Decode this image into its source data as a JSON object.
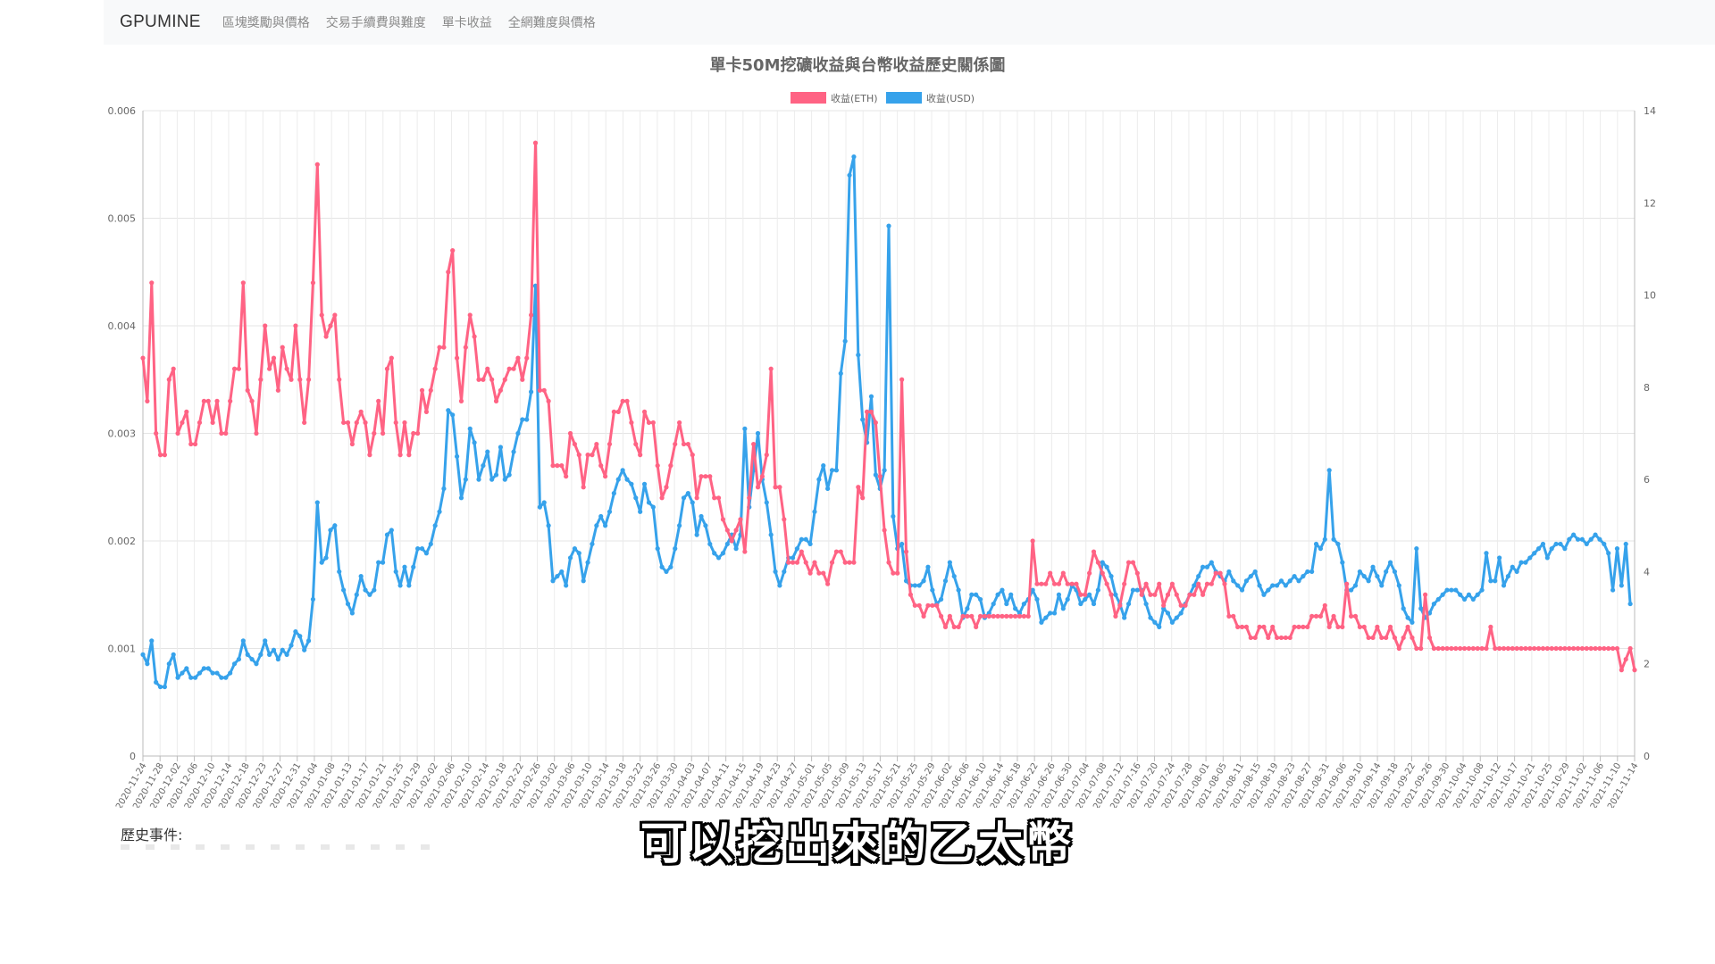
{
  "navbar": {
    "brand": "GPUMINE",
    "items": [
      "區塊獎勵與價格",
      "交易手續費與難度",
      "單卡收益",
      "全網難度與價格"
    ]
  },
  "chart_data": {
    "type": "line",
    "title": "單卡50M挖礦收益與台幣收益歷史關係圖",
    "legend_position": "top-center",
    "grid": true,
    "y_left": {
      "ylim": [
        0,
        0.006
      ],
      "ticks": [
        "0",
        "0.001",
        "0.002",
        "0.003",
        "0.004",
        "0.005",
        "0.006"
      ]
    },
    "y_right": {
      "ylim": [
        0,
        14
      ],
      "ticks": [
        "0",
        "2",
        "4",
        "6",
        "8",
        "10",
        "12",
        "14"
      ]
    },
    "x_tick_labels": [
      "2020-11-24",
      "2020-11-28",
      "2020-12-02",
      "2020-12-06",
      "2020-12-10",
      "2020-12-14",
      "2020-12-18",
      "2020-12-23",
      "2020-12-27",
      "2020-12-31",
      "2021-01-04",
      "2021-01-08",
      "2021-01-13",
      "2021-01-17",
      "2021-01-21",
      "2021-01-25",
      "2021-01-29",
      "2021-02-02",
      "2021-02-06",
      "2021-02-10",
      "2021-02-14",
      "2021-02-18",
      "2021-02-22",
      "2021-02-26",
      "2021-03-02",
      "2021-03-06",
      "2021-03-10",
      "2021-03-14",
      "2021-03-18",
      "2021-03-22",
      "2021-03-26",
      "2021-03-30",
      "2021-04-03",
      "2021-04-07",
      "2021-04-11",
      "2021-04-15",
      "2021-04-19",
      "2021-04-23",
      "2021-04-27",
      "2021-05-01",
      "2021-05-05",
      "2021-05-09",
      "2021-05-13",
      "2021-05-17",
      "2021-05-21",
      "2021-05-25",
      "2021-05-29",
      "2021-06-02",
      "2021-06-06",
      "2021-06-10",
      "2021-06-14",
      "2021-06-18",
      "2021-06-22",
      "2021-06-26",
      "2021-06-30",
      "2021-07-04",
      "2021-07-08",
      "2021-07-12",
      "2021-07-16",
      "2021-07-20",
      "2021-07-24",
      "2021-07-28",
      "2021-08-01",
      "2021-08-05",
      "2021-08-11",
      "2021-08-15",
      "2021-08-19",
      "2021-08-23",
      "2021-08-27",
      "2021-08-31",
      "2021-09-06",
      "2021-09-10",
      "2021-09-14",
      "2021-09-18",
      "2021-09-22",
      "2021-09-26",
      "2021-09-30",
      "2021-10-04",
      "2021-10-08",
      "2021-10-12",
      "2021-10-17",
      "2021-10-21",
      "2021-10-25",
      "2021-10-29",
      "2021-11-02",
      "2021-11-06",
      "2021-11-10",
      "2021-11-14"
    ],
    "series": [
      {
        "name": "收益(ETH)",
        "axis": "left",
        "color": "#ff6384",
        "values": [
          0.0037,
          0.0033,
          0.0044,
          0.003,
          0.0028,
          0.0028,
          0.0035,
          0.0036,
          0.003,
          0.0031,
          0.0032,
          0.0029,
          0.0029,
          0.0031,
          0.0033,
          0.0033,
          0.0031,
          0.0033,
          0.003,
          0.003,
          0.0033,
          0.0036,
          0.0036,
          0.0044,
          0.0034,
          0.0033,
          0.003,
          0.0035,
          0.004,
          0.0036,
          0.0037,
          0.0034,
          0.0038,
          0.0036,
          0.0035,
          0.004,
          0.0035,
          0.0031,
          0.0035,
          0.0044,
          0.0055,
          0.0041,
          0.0039,
          0.004,
          0.0041,
          0.0035,
          0.0031,
          0.0031,
          0.0029,
          0.0031,
          0.0032,
          0.0031,
          0.0028,
          0.003,
          0.0033,
          0.003,
          0.0036,
          0.0037,
          0.0031,
          0.0028,
          0.0031,
          0.0028,
          0.003,
          0.003,
          0.0034,
          0.0032,
          0.0034,
          0.0036,
          0.0038,
          0.0038,
          0.0045,
          0.0047,
          0.0037,
          0.0033,
          0.0038,
          0.0041,
          0.0039,
          0.0035,
          0.0035,
          0.0036,
          0.0035,
          0.0033,
          0.0034,
          0.0035,
          0.0036,
          0.0036,
          0.0037,
          0.0035,
          0.0037,
          0.0041,
          0.0057,
          0.0034,
          0.0034,
          0.0033,
          0.0027,
          0.0027,
          0.0027,
          0.0026,
          0.003,
          0.0029,
          0.0028,
          0.0025,
          0.0028,
          0.0028,
          0.0029,
          0.0027,
          0.0026,
          0.0029,
          0.0032,
          0.0032,
          0.0033,
          0.0033,
          0.0031,
          0.0029,
          0.0028,
          0.0032,
          0.0031,
          0.0031,
          0.0027,
          0.0024,
          0.0025,
          0.0027,
          0.0029,
          0.0031,
          0.0029,
          0.0029,
          0.0028,
          0.0024,
          0.0026,
          0.0026,
          0.0026,
          0.0024,
          0.0024,
          0.0022,
          0.0021,
          0.002,
          0.0021,
          0.0022,
          0.0019,
          0.0024,
          0.0029,
          0.0025,
          0.0026,
          0.0028,
          0.0036,
          0.0025,
          0.0025,
          0.0022,
          0.0018,
          0.0018,
          0.0018,
          0.0019,
          0.0018,
          0.0017,
          0.0018,
          0.0017,
          0.0017,
          0.0016,
          0.0018,
          0.0019,
          0.0019,
          0.0018,
          0.0018,
          0.0018,
          0.0025,
          0.0024,
          0.0032,
          0.0032,
          0.0031,
          0.0026,
          0.0021,
          0.0018,
          0.0017,
          0.0017,
          0.0035,
          0.0019,
          0.0015,
          0.0014,
          0.0014,
          0.0013,
          0.0014,
          0.0014,
          0.0014,
          0.0013,
          0.0012,
          0.0013,
          0.0012,
          0.0012,
          0.0013,
          0.0013,
          0.0013,
          0.0012,
          0.0013,
          0.0013,
          0.0013,
          0.0013,
          0.0013,
          0.0013,
          0.0013,
          0.0013,
          0.0013,
          0.0013,
          0.0013,
          0.0013,
          0.002,
          0.0016,
          0.0016,
          0.0016,
          0.0017,
          0.0016,
          0.0016,
          0.0017,
          0.0016,
          0.0016,
          0.0016,
          0.0015,
          0.0015,
          0.0017,
          0.0019,
          0.0018,
          0.0017,
          0.0016,
          0.0015,
          0.0013,
          0.0014,
          0.0016,
          0.0018,
          0.0018,
          0.0017,
          0.0015,
          0.0016,
          0.0015,
          0.0015,
          0.0016,
          0.0014,
          0.0015,
          0.0016,
          0.0015,
          0.0014,
          0.0014,
          0.0015,
          0.0015,
          0.0016,
          0.0015,
          0.0016,
          0.0016,
          0.0017,
          0.0017,
          0.0016,
          0.0013,
          0.0013,
          0.0012,
          0.0012,
          0.0012,
          0.0011,
          0.0011,
          0.0012,
          0.0012,
          0.0011,
          0.0012,
          0.0011,
          0.0011,
          0.0011,
          0.0011,
          0.0012,
          0.0012,
          0.0012,
          0.0012,
          0.0013,
          0.0013,
          0.0013,
          0.0014,
          0.0012,
          0.0013,
          0.0012,
          0.0012,
          0.0016,
          0.0013,
          0.0013,
          0.0012,
          0.0012,
          0.0011,
          0.0011,
          0.0012,
          0.0011,
          0.0011,
          0.0012,
          0.0011,
          0.001,
          0.0011,
          0.0012,
          0.0011,
          0.001,
          0.001,
          0.0015,
          0.0011,
          0.001,
          0.001,
          0.001,
          0.001,
          0.001,
          0.001,
          0.001,
          0.001,
          0.001,
          0.001,
          0.001,
          0.001,
          0.001,
          0.0012,
          0.001,
          0.001,
          0.001,
          0.001,
          0.001,
          0.001,
          0.001,
          0.001,
          0.001,
          0.001,
          0.001,
          0.001,
          0.001,
          0.001,
          0.001,
          0.001,
          0.001,
          0.001,
          0.001,
          0.001,
          0.001,
          0.001,
          0.001,
          0.001,
          0.001,
          0.001,
          0.001,
          0.001,
          0.001,
          0.0008,
          0.0009,
          0.001,
          0.0008
        ]
      },
      {
        "name": "收益(USD)",
        "axis": "right",
        "color": "#36a2eb",
        "values": [
          2.2,
          2.0,
          2.5,
          1.6,
          1.5,
          1.5,
          2.0,
          2.2,
          1.7,
          1.8,
          1.9,
          1.7,
          1.7,
          1.8,
          1.9,
          1.9,
          1.8,
          1.8,
          1.7,
          1.7,
          1.8,
          2.0,
          2.1,
          2.5,
          2.2,
          2.1,
          2.0,
          2.2,
          2.5,
          2.2,
          2.3,
          2.1,
          2.3,
          2.2,
          2.4,
          2.7,
          2.6,
          2.3,
          2.5,
          3.4,
          5.5,
          4.2,
          4.3,
          4.9,
          5.0,
          4.0,
          3.6,
          3.3,
          3.1,
          3.5,
          3.9,
          3.6,
          3.5,
          3.6,
          4.2,
          4.2,
          4.8,
          4.9,
          4.0,
          3.7,
          4.1,
          3.7,
          4.1,
          4.5,
          4.5,
          4.4,
          4.6,
          5.0,
          5.3,
          5.8,
          7.5,
          7.4,
          6.5,
          5.6,
          6.0,
          7.1,
          6.8,
          6.0,
          6.3,
          6.6,
          6.0,
          6.1,
          6.7,
          6.0,
          6.1,
          6.6,
          7.0,
          7.3,
          7.3,
          7.9,
          10.2,
          5.4,
          5.5,
          5.0,
          3.8,
          3.9,
          4.0,
          3.7,
          4.3,
          4.5,
          4.4,
          3.8,
          4.2,
          4.6,
          5.0,
          5.2,
          5.0,
          5.3,
          5.7,
          6.0,
          6.2,
          6.0,
          5.9,
          5.6,
          5.3,
          5.9,
          5.5,
          5.4,
          4.5,
          4.1,
          4.0,
          4.1,
          4.5,
          5.0,
          5.6,
          5.7,
          5.5,
          4.8,
          5.2,
          5.0,
          4.6,
          4.4,
          4.3,
          4.4,
          4.6,
          4.8,
          4.5,
          4.8,
          7.1,
          5.4,
          6.2,
          7.0,
          6.0,
          5.5,
          4.8,
          4.0,
          3.7,
          4.0,
          4.3,
          4.3,
          4.5,
          4.7,
          4.7,
          4.6,
          5.3,
          6.0,
          6.3,
          5.8,
          6.2,
          6.2,
          8.3,
          9.0,
          12.6,
          13.0,
          8.7,
          7.3,
          6.8,
          7.8,
          6.1,
          5.8,
          6.2,
          11.5,
          5.2,
          4.5,
          4.6,
          3.8,
          3.7,
          3.7,
          3.7,
          3.8,
          4.1,
          3.6,
          3.3,
          3.4,
          3.8,
          4.2,
          3.9,
          3.6,
          3.0,
          3.2,
          3.5,
          3.5,
          3.4,
          3.0,
          3.1,
          3.3,
          3.5,
          3.6,
          3.3,
          3.5,
          3.2,
          3.1,
          3.3,
          3.4,
          3.6,
          3.4,
          2.9,
          3.0,
          3.1,
          3.1,
          3.5,
          3.2,
          3.4,
          3.7,
          3.6,
          3.3,
          3.4,
          3.5,
          3.3,
          3.6,
          4.2,
          4.1,
          3.9,
          3.5,
          3.3,
          3.0,
          3.3,
          3.6,
          3.6,
          3.6,
          3.3,
          3.0,
          2.9,
          2.8,
          3.2,
          3.1,
          2.9,
          3.0,
          3.1,
          3.3,
          3.5,
          3.7,
          3.9,
          4.1,
          4.1,
          4.2,
          4.0,
          3.9,
          3.8,
          4.0,
          3.8,
          3.7,
          3.6,
          3.8,
          3.9,
          4.0,
          3.7,
          3.5,
          3.6,
          3.7,
          3.7,
          3.8,
          3.7,
          3.8,
          3.9,
          3.8,
          3.9,
          4.0,
          4.0,
          4.6,
          4.5,
          4.7,
          6.2,
          4.7,
          4.6,
          4.2,
          3.6,
          3.6,
          3.7,
          4.0,
          3.9,
          3.8,
          4.1,
          3.9,
          3.7,
          4.0,
          4.2,
          4.0,
          3.7,
          3.2,
          3.0,
          2.9,
          4.5,
          3.2,
          3.0,
          3.1,
          3.3,
          3.4,
          3.5,
          3.6,
          3.6,
          3.6,
          3.5,
          3.4,
          3.5,
          3.4,
          3.5,
          3.6,
          4.4,
          3.8,
          3.8,
          4.3,
          3.7,
          3.9,
          4.1,
          4.0,
          4.2,
          4.2,
          4.3,
          4.4,
          4.5,
          4.6,
          4.3,
          4.5,
          4.6,
          4.6,
          4.5,
          4.7,
          4.8,
          4.7,
          4.7,
          4.6,
          4.7,
          4.8,
          4.7,
          4.6,
          4.4,
          3.6,
          4.5,
          3.7,
          4.6,
          3.3
        ]
      }
    ]
  },
  "page": {
    "events_label": "歷史事件:",
    "subtitle": "可以挖出來的乙太幣"
  }
}
